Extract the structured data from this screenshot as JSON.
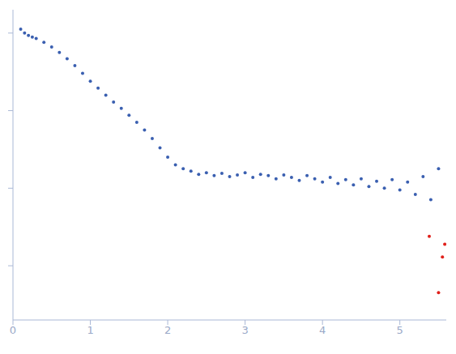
{
  "chart_data": {
    "type": "scatter",
    "log": "y",
    "grid": false,
    "tick_labels": "x",
    "marker": "circle",
    "xlim": [
      0,
      5.6
    ],
    "xticks": [
      0,
      1,
      2,
      3,
      4,
      5
    ],
    "ylim": [
      0.0002,
      2
    ],
    "yticks": [
      0.001,
      0.01,
      0.1,
      1
    ],
    "series": [
      {
        "color": "#3a5fb0",
        "x": [
          0.1,
          0.15,
          0.2,
          0.25,
          0.3,
          0.4,
          0.5,
          0.6,
          0.7,
          0.8,
          0.9,
          1.0,
          1.1,
          1.2,
          1.3,
          1.4,
          1.5,
          1.6,
          1.7,
          1.8,
          1.9,
          2.0,
          2.1,
          2.2,
          2.3,
          2.4,
          2.5,
          2.6,
          2.7,
          2.8,
          2.9,
          3.0,
          3.1,
          3.2,
          3.3,
          3.4,
          3.5,
          3.6,
          3.7,
          3.8,
          3.9,
          4.0,
          4.1,
          4.2,
          4.3,
          4.4,
          4.5,
          4.6,
          4.7,
          4.8,
          4.9,
          5.0,
          5.1,
          5.2,
          5.3,
          5.4,
          5.5
        ],
        "values": [
          1.12,
          1.0,
          0.93,
          0.89,
          0.851,
          0.759,
          0.661,
          0.562,
          0.468,
          0.38,
          0.302,
          0.24,
          0.195,
          0.158,
          0.129,
          0.107,
          0.0871,
          0.0708,
          0.0562,
          0.0437,
          0.0331,
          0.0251,
          0.02,
          0.0178,
          0.0166,
          0.0151,
          0.0158,
          0.0145,
          0.0155,
          0.0141,
          0.0148,
          0.0158,
          0.0138,
          0.0151,
          0.0145,
          0.0132,
          0.0148,
          0.0138,
          0.0126,
          0.0145,
          0.0132,
          0.012,
          0.0138,
          0.0115,
          0.0129,
          0.011,
          0.0132,
          0.0105,
          0.0123,
          0.01,
          0.0129,
          0.0095,
          0.012,
          0.0083,
          0.0141,
          0.0071,
          0.0178
        ]
      },
      {
        "color": "#e0201b",
        "x": [
          5.38,
          5.5,
          5.55,
          5.58
        ],
        "values": [
          0.0024,
          0.00045,
          0.0013,
          0.0019
        ]
      }
    ]
  }
}
